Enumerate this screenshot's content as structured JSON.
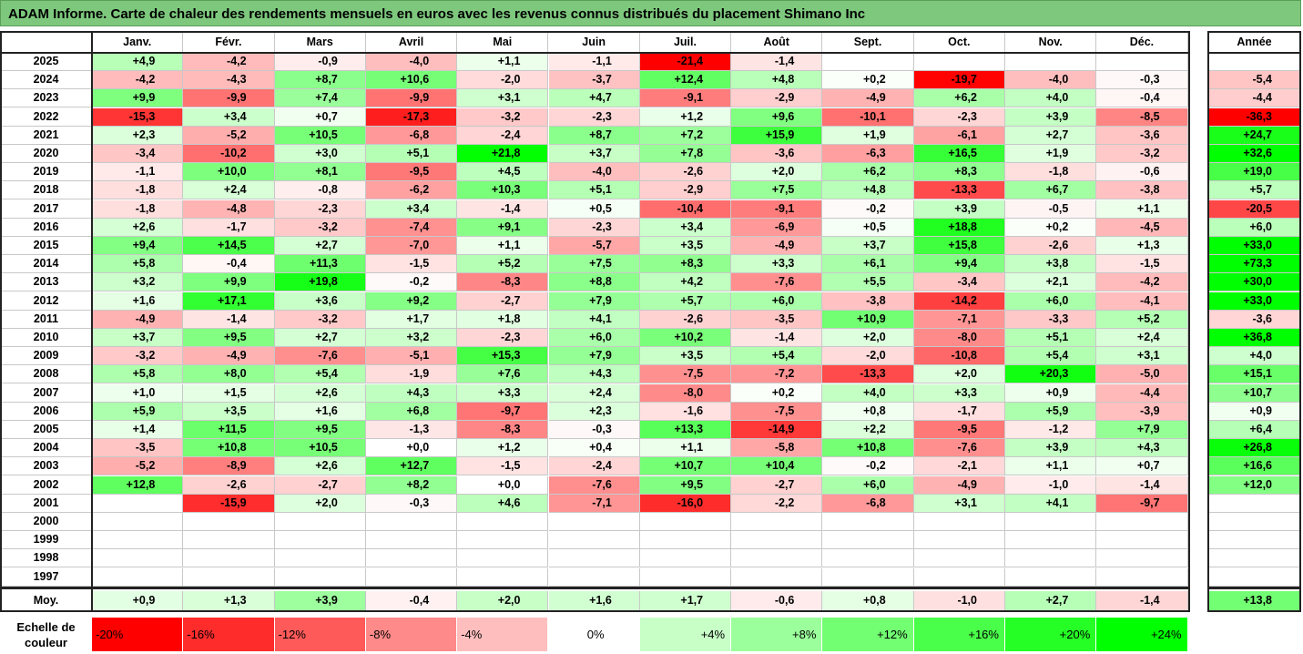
{
  "title": "ADAM Informe. Carte de chaleur des rendements mensuels en euros avec les revenus connus distribués du placement Shimano Inc",
  "chart_data": {
    "type": "heatmap",
    "title": "ADAM Informe. Carte de chaleur des rendements mensuels en euros avec les revenus connus distribués du placement Shimano Inc",
    "columns": [
      "Janv.",
      "Févr.",
      "Mars",
      "Avril",
      "Mai",
      "Juin",
      "Juil.",
      "Août",
      "Sept.",
      "Oct.",
      "Nov.",
      "Déc."
    ],
    "annual_header": "Année",
    "rows": [
      {
        "year": "2025",
        "values": [
          "+4,9",
          "-4,2",
          "-0,9",
          "-4,0",
          "+1,1",
          "-1,1",
          "-21,4",
          "-1,4",
          "",
          "",
          "",
          ""
        ],
        "annual": ""
      },
      {
        "year": "2024",
        "values": [
          "-4,2",
          "-4,3",
          "+8,7",
          "+10,6",
          "-2,0",
          "-3,7",
          "+12,4",
          "+4,8",
          "+0,2",
          "-19,7",
          "-4,0",
          "-0,3"
        ],
        "annual": "-5,4"
      },
      {
        "year": "2023",
        "values": [
          "+9,9",
          "-9,9",
          "+7,4",
          "-9,9",
          "+3,1",
          "+4,7",
          "-9,1",
          "-2,9",
          "-4,9",
          "+6,2",
          "+4,0",
          "-0,4"
        ],
        "annual": "-4,4"
      },
      {
        "year": "2022",
        "values": [
          "-15,3",
          "+3,4",
          "+0,7",
          "-17,3",
          "-3,2",
          "-2,3",
          "+1,2",
          "+9,6",
          "-10,1",
          "-2,3",
          "+3,9",
          "-8,5"
        ],
        "annual": "-36,3"
      },
      {
        "year": "2021",
        "values": [
          "+2,3",
          "-5,2",
          "+10,5",
          "-6,8",
          "-2,4",
          "+8,7",
          "+7,2",
          "+15,9",
          "+1,9",
          "-6,1",
          "+2,7",
          "-3,6"
        ],
        "annual": "+24,7"
      },
      {
        "year": "2020",
        "values": [
          "-3,4",
          "-10,2",
          "+3,0",
          "+5,1",
          "+21,8",
          "+3,7",
          "+7,8",
          "-3,6",
          "-6,3",
          "+16,5",
          "+1,9",
          "-3,2"
        ],
        "annual": "+32,6"
      },
      {
        "year": "2019",
        "values": [
          "-1,1",
          "+10,0",
          "+8,1",
          "-9,5",
          "+4,5",
          "-4,0",
          "-2,6",
          "+2,0",
          "+6,2",
          "+8,3",
          "-1,8",
          "-0,6"
        ],
        "annual": "+19,0"
      },
      {
        "year": "2018",
        "values": [
          "-1,8",
          "+2,4",
          "-0,8",
          "-6,2",
          "+10,3",
          "+5,1",
          "-2,9",
          "+7,5",
          "+4,8",
          "-13,3",
          "+6,7",
          "-3,8"
        ],
        "annual": "+5,7"
      },
      {
        "year": "2017",
        "values": [
          "-1,8",
          "-4,8",
          "-2,3",
          "+3,4",
          "-1,4",
          "+0,5",
          "-10,4",
          "-9,1",
          "-0,2",
          "+3,9",
          "-0,5",
          "+1,1"
        ],
        "annual": "-20,5"
      },
      {
        "year": "2016",
        "values": [
          "+2,6",
          "-1,7",
          "-3,2",
          "-7,4",
          "+9,1",
          "-2,3",
          "+3,4",
          "-6,9",
          "+0,5",
          "+18,8",
          "+0,2",
          "-4,5"
        ],
        "annual": "+6,0"
      },
      {
        "year": "2015",
        "values": [
          "+9,4",
          "+14,5",
          "+2,7",
          "-7,0",
          "+1,1",
          "-5,7",
          "+3,5",
          "-4,9",
          "+3,7",
          "+15,8",
          "-2,6",
          "+1,3"
        ],
        "annual": "+33,0"
      },
      {
        "year": "2014",
        "values": [
          "+5,8",
          "-0,4",
          "+11,3",
          "-1,5",
          "+5,2",
          "+7,5",
          "+8,3",
          "+3,3",
          "+6,1",
          "+9,4",
          "+3,8",
          "-1,5"
        ],
        "annual": "+73,3"
      },
      {
        "year": "2013",
        "values": [
          "+3,2",
          "+9,9",
          "+19,8",
          "-0,2",
          "-8,3",
          "+8,8",
          "+4,2",
          "-7,6",
          "+5,5",
          "-3,4",
          "+2,1",
          "-4,2"
        ],
        "annual": "+30,0"
      },
      {
        "year": "2012",
        "values": [
          "+1,6",
          "+17,1",
          "+3,6",
          "+9,2",
          "-2,7",
          "+7,9",
          "+5,7",
          "+6,0",
          "-3,8",
          "-14,2",
          "+6,0",
          "-4,1"
        ],
        "annual": "+33,0"
      },
      {
        "year": "2011",
        "values": [
          "-4,9",
          "-1,4",
          "-3,2",
          "+1,7",
          "+1,8",
          "+4,1",
          "-2,6",
          "-3,5",
          "+10,9",
          "-7,1",
          "-3,3",
          "+5,2"
        ],
        "annual": "-3,6"
      },
      {
        "year": "2010",
        "values": [
          "+3,7",
          "+9,5",
          "+2,7",
          "+3,2",
          "-2,3",
          "+6,0",
          "+10,2",
          "-1,4",
          "+2,0",
          "-8,0",
          "+5,1",
          "+2,4"
        ],
        "annual": "+36,8"
      },
      {
        "year": "2009",
        "values": [
          "-3,2",
          "-4,9",
          "-7,6",
          "-5,1",
          "+15,3",
          "+7,9",
          "+3,5",
          "+5,4",
          "-2,0",
          "-10,8",
          "+5,4",
          "+3,1"
        ],
        "annual": "+4,0"
      },
      {
        "year": "2008",
        "values": [
          "+5,8",
          "+8,0",
          "+5,4",
          "-1,9",
          "+7,6",
          "+4,3",
          "-7,5",
          "-7,2",
          "-13,3",
          "+2,0",
          "+20,3",
          "-5,0"
        ],
        "annual": "+15,1"
      },
      {
        "year": "2007",
        "values": [
          "+1,0",
          "+1,5",
          "+2,6",
          "+4,3",
          "+3,3",
          "+2,4",
          "-8,0",
          "+0,2",
          "+4,0",
          "+3,3",
          "+0,9",
          "-4,4"
        ],
        "annual": "+10,7"
      },
      {
        "year": "2006",
        "values": [
          "+5,9",
          "+3,5",
          "+1,6",
          "+6,8",
          "-9,7",
          "+2,3",
          "-1,6",
          "-7,5",
          "+0,8",
          "-1,7",
          "+5,9",
          "-3,9"
        ],
        "annual": "+0,9"
      },
      {
        "year": "2005",
        "values": [
          "+1,4",
          "+11,5",
          "+9,5",
          "-1,3",
          "-8,3",
          "-0,3",
          "+13,3",
          "-14,9",
          "+2,2",
          "-9,5",
          "-1,2",
          "+7,9"
        ],
        "annual": "+6,4"
      },
      {
        "year": "2004",
        "values": [
          "-3,5",
          "+10,8",
          "+10,5",
          "+0,0",
          "+1,2",
          "+0,4",
          "+1,1",
          "-5,8",
          "+10,8",
          "-7,6",
          "+3,9",
          "+4,3"
        ],
        "annual": "+26,8"
      },
      {
        "year": "2003",
        "values": [
          "-5,2",
          "-8,9",
          "+2,6",
          "+12,7",
          "-1,5",
          "-2,4",
          "+10,7",
          "+10,4",
          "-0,2",
          "-2,1",
          "+1,1",
          "+0,7"
        ],
        "annual": "+16,6"
      },
      {
        "year": "2002",
        "values": [
          "+12,8",
          "-2,6",
          "-2,7",
          "+8,2",
          "+0,0",
          "-7,6",
          "+9,5",
          "-2,7",
          "+6,0",
          "-4,9",
          "-1,0",
          "-1,4"
        ],
        "annual": "+12,0"
      },
      {
        "year": "2001",
        "values": [
          "",
          "-15,9",
          "+2,0",
          "-0,3",
          "+4,6",
          "-7,1",
          "-16,0",
          "-2,2",
          "-6,8",
          "+3,1",
          "+4,1",
          "-9,7"
        ],
        "annual": ""
      },
      {
        "year": "2000",
        "values": [
          "",
          "",
          "",
          "",
          "",
          "",
          "",
          "",
          "",
          "",
          "",
          ""
        ],
        "annual": ""
      },
      {
        "year": "1999",
        "values": [
          "",
          "",
          "",
          "",
          "",
          "",
          "",
          "",
          "",
          "",
          "",
          ""
        ],
        "annual": ""
      },
      {
        "year": "1998",
        "values": [
          "",
          "",
          "",
          "",
          "",
          "",
          "",
          "",
          "",
          "",
          "",
          ""
        ],
        "annual": ""
      },
      {
        "year": "1997",
        "values": [
          "",
          "",
          "",
          "",
          "",
          "",
          "",
          "",
          "",
          "",
          "",
          ""
        ],
        "annual": ""
      }
    ],
    "average": {
      "label": "Moy.",
      "values": [
        "+0,9",
        "+1,3",
        "+3,9",
        "-0,4",
        "+2,0",
        "+1,6",
        "+1,7",
        "-0,6",
        "+0,8",
        "-1,0",
        "+2,7",
        "-1,4"
      ],
      "annual": "+13,8"
    },
    "color_scale": {
      "label": "Echelle de couleur",
      "steps": [
        "-20%",
        "-16%",
        "-12%",
        "-8%",
        "-4%",
        "0%",
        "+4%",
        "+8%",
        "+12%",
        "+16%",
        "+20%",
        "+24%"
      ],
      "negative_color": "#ff0000",
      "neutral_color": "#ffffff",
      "positive_color": "#00ff00"
    }
  }
}
